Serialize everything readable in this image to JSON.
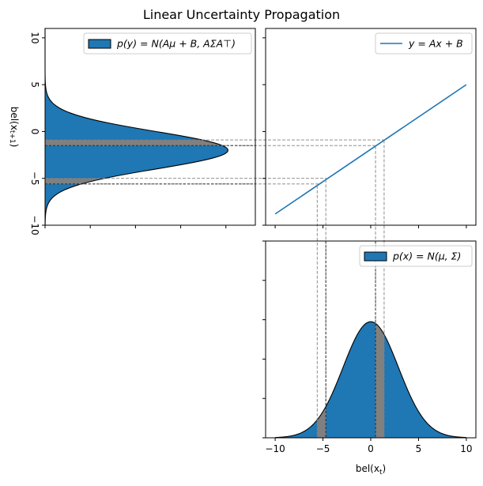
{
  "title": "Linear Uncertainty Propagation",
  "colors": {
    "fill": "#1f77b4",
    "highlight": "#808080",
    "line": "#1f77b4",
    "guide": "#808080"
  },
  "chart_data": [
    {
      "type": "area",
      "panel": "top-left",
      "orientation": "horizontal",
      "legend": "p(y) = N(Aμ + B, AΣA⊤)",
      "legend_placement": "top-right",
      "ylabel": "bel(x_{t+1})",
      "ylim": [
        -10,
        11
      ],
      "yticks": [
        -10,
        -5,
        0,
        5,
        10
      ],
      "distribution": {
        "mean": -2,
        "sd": 2
      },
      "highlight_bands": [
        [
          -1.5,
          -0.9
        ],
        [
          -5.6,
          -5.0
        ]
      ],
      "dashed_lines_y": [
        -0.9,
        -1.5,
        -5.0,
        -5.6
      ]
    },
    {
      "type": "line",
      "panel": "top-right",
      "legend": "y = Ax + B",
      "legend_placement": "top-right",
      "x": [
        -10,
        10
      ],
      "y": [
        -8.8,
        5
      ],
      "xlim": [
        -11,
        11
      ],
      "ylim": [
        -10,
        11
      ]
    },
    {
      "type": "area",
      "panel": "bottom-right",
      "legend": "p(x) = N(μ, Σ)",
      "legend_placement": "top-right",
      "xlabel": "bel(x_t)",
      "xlim": [
        -11,
        11
      ],
      "xticks": [
        -10,
        -5,
        0,
        5,
        10
      ],
      "distribution": {
        "mean": 0,
        "sd": 2.9
      },
      "highlight_bands": [
        [
          -5.6,
          -4.7
        ],
        [
          0.5,
          1.4
        ]
      ],
      "dashed_lines_x": [
        -5.6,
        -4.7,
        0.5,
        1.4
      ]
    }
  ]
}
